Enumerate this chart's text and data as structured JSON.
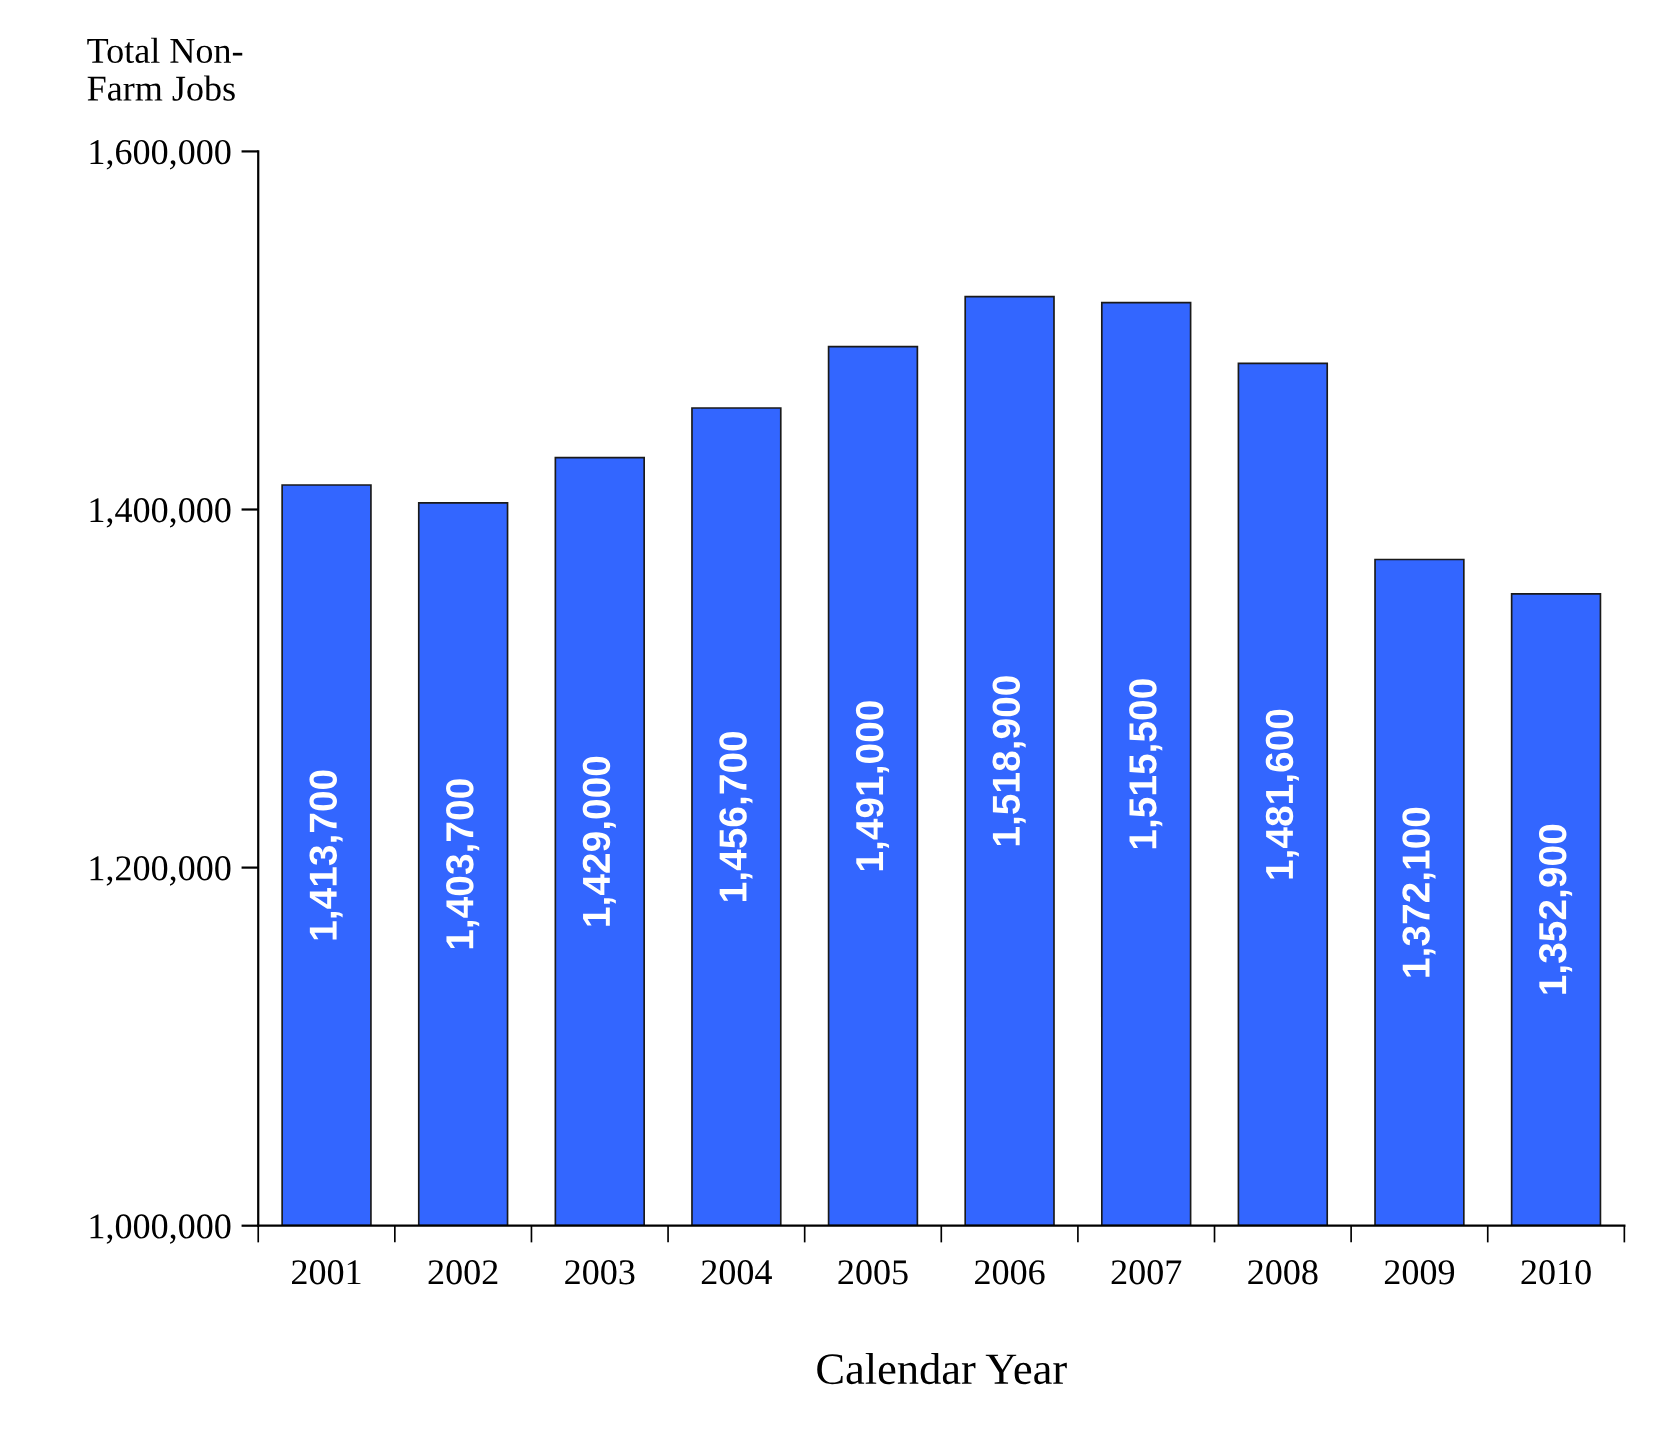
{
  "chart_data": {
    "type": "bar",
    "ylabel": "Total Non-\nFarm Jobs",
    "xlabel": "Calendar Year",
    "categories": [
      "2001",
      "2002",
      "2003",
      "2004",
      "2005",
      "2006",
      "2007",
      "2008",
      "2009",
      "2010"
    ],
    "values": [
      1413700,
      1403700,
      1429000,
      1456700,
      1491000,
      1518900,
      1515500,
      1481600,
      1372100,
      1352900
    ],
    "value_labels": [
      "1,413,700",
      "1,403,700",
      "1,429,000",
      "1,456,700",
      "1,491,000",
      "1,518,900",
      "1,515,500",
      "1,481,600",
      "1,372,100",
      "1,352,900"
    ],
    "color": "#3366ff",
    "ylim": [
      1000000,
      1600000
    ],
    "yticks": [
      {
        "value": 1000000,
        "label": "1,000,000"
      },
      {
        "value": 1200000,
        "label": "1,200,000"
      },
      {
        "value": 1400000,
        "label": "1,400,000"
      },
      {
        "value": 1600000,
        "label": "1,600,000"
      }
    ],
    "grid": false,
    "legend": false
  }
}
